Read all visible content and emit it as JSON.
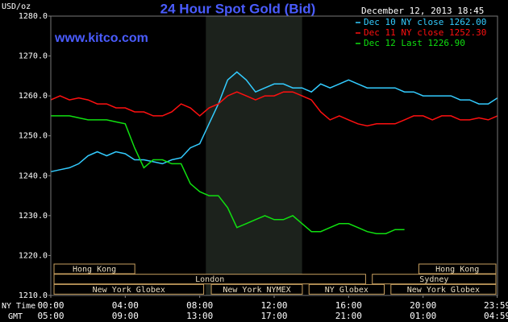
{
  "chart_data": {
    "type": "line",
    "title": "24 Hour Spot Gold (Bid)",
    "watermark": "www.kitco.com",
    "y_label": "USD/oz",
    "timestamp": "December 12, 2013 18:45",
    "x_row_labels": [
      "NY Time",
      "GMT"
    ],
    "x": [
      0,
      0.5,
      1,
      1.5,
      2,
      2.5,
      3,
      3.5,
      4,
      4.5,
      5,
      5.5,
      6,
      6.5,
      7,
      7.5,
      8,
      8.5,
      9,
      9.5,
      10,
      10.5,
      11,
      11.5,
      12,
      12.5,
      13,
      13.5,
      14,
      14.5,
      15,
      15.5,
      16,
      16.5,
      17,
      17.5,
      18,
      18.5,
      19,
      19.5,
      20,
      20.5,
      21,
      21.5,
      22,
      22.5,
      23,
      23.5,
      24
    ],
    "series": [
      {
        "name": "Dec 10 NY close 1262.00",
        "color": "#33ccff",
        "values": [
          1241,
          1241.5,
          1242,
          1243,
          1245,
          1246,
          1245,
          1246,
          1245.5,
          1244,
          1244,
          1243.5,
          1243,
          1244,
          1244.5,
          1247,
          1248,
          1253,
          1258,
          1264,
          1266,
          1264,
          1261,
          1262,
          1263,
          1263,
          1262,
          1262,
          1261,
          1263,
          1262,
          1263,
          1264,
          1263,
          1262,
          1262,
          1262,
          1262,
          1261,
          1261,
          1260,
          1260,
          1260,
          1260,
          1259,
          1259,
          1258,
          1258,
          1259.5
        ]
      },
      {
        "name": "Dec 11 NY close 1252.30",
        "color": "#ff1010",
        "values": [
          1259,
          1260,
          1259,
          1259.5,
          1259,
          1258,
          1258,
          1257,
          1257,
          1256,
          1256,
          1255,
          1255,
          1256,
          1258,
          1257,
          1255,
          1257,
          1258,
          1260,
          1261,
          1260,
          1259,
          1260,
          1260,
          1261,
          1261,
          1260,
          1259,
          1256,
          1254,
          1255,
          1254,
          1253,
          1252.5,
          1253,
          1253,
          1253,
          1254,
          1255,
          1255,
          1254,
          1255,
          1255,
          1254,
          1254,
          1254.5,
          1254,
          1255
        ]
      },
      {
        "name": "Dec 12 Last 1226.90",
        "color": "#10e010",
        "values": [
          1255,
          1255,
          1255,
          1254.5,
          1254,
          1254,
          1254,
          1253.5,
          1253,
          1247,
          1242,
          1244,
          1244,
          1243,
          1243,
          1238,
          1236,
          1235,
          1235,
          1232,
          1227,
          1228,
          1229,
          1230,
          1229,
          1229,
          1230,
          1228,
          1226,
          1226,
          1227,
          1228,
          1228,
          1227,
          1226,
          1225.5,
          1225.5,
          1226.5,
          1226.5,
          null,
          null,
          null,
          null,
          null,
          null,
          null,
          null,
          null,
          null
        ]
      }
    ],
    "xlim": [
      0,
      24
    ],
    "xticks": [
      {
        "value": 0,
        "label": "00:00"
      },
      {
        "value": 4,
        "label": "04:00"
      },
      {
        "value": 8,
        "label": "08:00"
      },
      {
        "value": 12,
        "label": "12:00"
      },
      {
        "value": 16,
        "label": "16:00"
      },
      {
        "value": 20,
        "label": "20:00"
      },
      {
        "value": 23.983,
        "label": "23:59"
      }
    ],
    "gmt_labels": [
      "05:00",
      "09:00",
      "13:00",
      "17:00",
      "21:00",
      "01:00",
      "04:59"
    ],
    "ylim": [
      1210,
      1280
    ],
    "yticks": [
      {
        "value": 1210,
        "label": "1210.0"
      },
      {
        "value": 1220,
        "label": "1220.0"
      },
      {
        "value": 1230,
        "label": "1230.0"
      },
      {
        "value": 1240,
        "label": "1240.0"
      },
      {
        "value": 1250,
        "label": "1250.0"
      },
      {
        "value": 1260,
        "label": "1260.0"
      },
      {
        "value": 1270,
        "label": "1270.0"
      },
      {
        "value": 1280,
        "label": "1280.0"
      }
    ],
    "grid": false,
    "shaded_range": [
      8.33,
      13.5
    ],
    "sessions": [
      {
        "label": "Hong Kong",
        "start": 0,
        "end": 4.6,
        "row": 0
      },
      {
        "label": "Hong Kong",
        "start": 19.6,
        "end": 24,
        "row": 0
      },
      {
        "label": "London",
        "start": 0,
        "end": 17,
        "row": 1
      },
      {
        "label": "Sydney",
        "start": 17.1,
        "end": 24,
        "row": 1
      },
      {
        "label": "New York Globex",
        "start": 0,
        "end": 8.3,
        "row": 2
      },
      {
        "label": "New York NYMEX",
        "start": 8.45,
        "end": 13.6,
        "row": 2
      },
      {
        "label": "NY Globex",
        "start": 13.7,
        "end": 18,
        "row": 2
      },
      {
        "label": "New York Globex",
        "start": 18.1,
        "end": 24,
        "row": 2
      }
    ]
  }
}
